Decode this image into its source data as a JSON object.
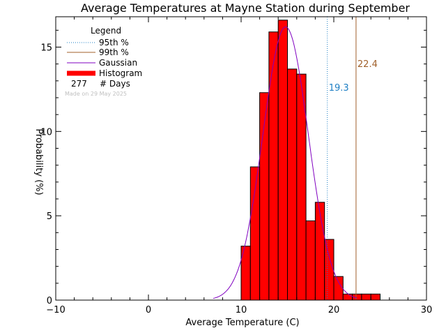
{
  "chart_data": {
    "type": "bar",
    "title": "Average Temperatures at Mayne Station during September",
    "xlabel": "Average Temperature (C)",
    "ylabel": "Probability (%)",
    "xlim": [
      -10,
      30
    ],
    "ylim": [
      0,
      16.8
    ],
    "xticks": [
      "−10",
      "0",
      "10",
      "20",
      "30"
    ],
    "yticks": [
      "0",
      "5",
      "10",
      "15"
    ],
    "bin_width": 1,
    "histogram": [
      {
        "x0": 10,
        "value": 3.2
      },
      {
        "x0": 11,
        "value": 7.9
      },
      {
        "x0": 12,
        "value": 12.3
      },
      {
        "x0": 13,
        "value": 15.9
      },
      {
        "x0": 14,
        "value": 16.6
      },
      {
        "x0": 15,
        "value": 13.7
      },
      {
        "x0": 16,
        "value": 13.4
      },
      {
        "x0": 17,
        "value": 4.7
      },
      {
        "x0": 18,
        "value": 5.8
      },
      {
        "x0": 19,
        "value": 3.6
      },
      {
        "x0": 20,
        "value": 1.4
      },
      {
        "x0": 21,
        "value": 0.36
      },
      {
        "x0": 22,
        "value": 0.36
      },
      {
        "x0": 23,
        "value": 0.36
      },
      {
        "x0": 24,
        "value": 0.36
      }
    ],
    "gaussian": {
      "mean": 14.8,
      "sigma": 2.45,
      "peak": 16.2,
      "x_range": [
        7,
        22.5
      ]
    },
    "percentiles": [
      {
        "name": "95th %",
        "value": 19.3,
        "label": "19.3",
        "color": "#1e7fc4",
        "style": "dotted"
      },
      {
        "name": "99th %",
        "value": 22.4,
        "label": "22.4",
        "color": "#a0602a",
        "style": "solid"
      }
    ],
    "colors": {
      "histogram_fill": "#ff0000",
      "gaussian": "#8000c0",
      "axis": "#000000"
    }
  },
  "legend": {
    "title": "Legend",
    "items": [
      {
        "label": "95th %",
        "color": "#1e7fc4",
        "style": "dotted"
      },
      {
        "label": "99th %",
        "color": "#a0602a",
        "style": "solid"
      },
      {
        "label": "Gaussian",
        "color": "#8000c0",
        "style": "solid"
      },
      {
        "label": "Histogram",
        "color": "#ff0000",
        "style": "thick"
      }
    ],
    "days_count": "277",
    "days_label": "# Days"
  },
  "made_on": "Made on 29 May 2025"
}
